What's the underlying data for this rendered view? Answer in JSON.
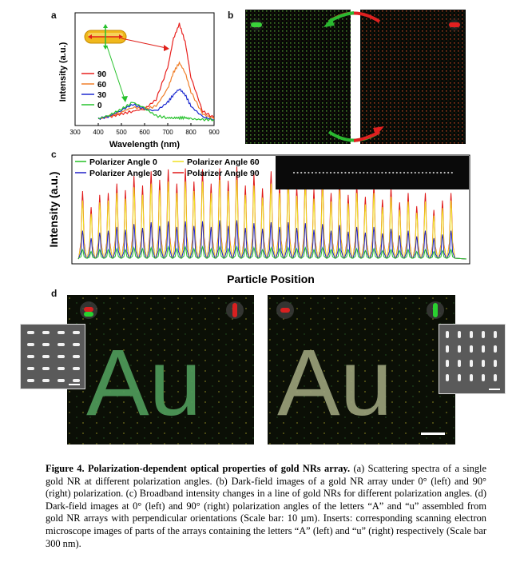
{
  "panels": {
    "a": "a",
    "b": "b",
    "c": "c",
    "d": "d"
  },
  "panel_a": {
    "xlabel": "Wavelength (nm)",
    "ylabel": "Intensity (a.u.)",
    "xticks": [
      "300",
      "400",
      "500",
      "600",
      "700",
      "800",
      "900"
    ],
    "legend": [
      "90",
      "60",
      "30",
      "0"
    ],
    "colors": {
      "s90": "#e8211e",
      "s60": "#f07f2a",
      "s30": "#1d2bd0",
      "s0": "#27c22d"
    }
  },
  "panel_c": {
    "xlabel": "Particle Position",
    "ylabel": "Intensity (a.u.)",
    "legend": [
      "Polarizer Angle 0",
      "Polarizer Angle 30",
      "Polarizer Angle 60",
      "Polarizer Angle 90"
    ],
    "colors": {
      "a0": "#26c026",
      "a30": "#2020c8",
      "a60": "#f0e020",
      "a90": "#e01818"
    }
  },
  "chart_data": [
    {
      "type": "line",
      "title": "",
      "xlabel": "Wavelength (nm)",
      "ylabel": "Intensity (a.u.)",
      "xlim": [
        300,
        900
      ],
      "x": [
        400,
        450,
        500,
        550,
        600,
        650,
        700,
        725,
        750,
        775,
        800,
        850,
        900
      ],
      "series": [
        {
          "name": "90",
          "values": [
            0.02,
            0.04,
            0.07,
            0.1,
            0.12,
            0.22,
            0.55,
            0.85,
            1.0,
            0.82,
            0.45,
            0.1,
            0.03
          ]
        },
        {
          "name": "60",
          "values": [
            0.02,
            0.05,
            0.09,
            0.14,
            0.12,
            0.15,
            0.33,
            0.5,
            0.6,
            0.5,
            0.3,
            0.07,
            0.02
          ]
        },
        {
          "name": "30",
          "values": [
            0.02,
            0.05,
            0.11,
            0.17,
            0.12,
            0.1,
            0.19,
            0.27,
            0.33,
            0.27,
            0.15,
            0.04,
            0.01
          ]
        },
        {
          "name": "0",
          "values": [
            0.02,
            0.06,
            0.12,
            0.19,
            0.13,
            0.05,
            0.03,
            0.03,
            0.03,
            0.03,
            0.02,
            0.01,
            0.01
          ]
        }
      ]
    },
    {
      "type": "line",
      "title": "",
      "xlabel": "Particle Position",
      "ylabel": "Intensity (a.u.)",
      "peaks": 44,
      "series": [
        {
          "name": "Polarizer Angle 90",
          "values": [
            0.72,
            0.55,
            0.68,
            0.7,
            0.8,
            0.73,
            0.88,
            0.78,
            0.93,
            0.84,
            0.95,
            0.8,
            0.96,
            0.82,
            0.95,
            0.8,
            0.96,
            0.83,
            0.98,
            0.78,
            0.9,
            0.75,
            0.93,
            0.8,
            0.92,
            0.77,
            0.9,
            0.74,
            0.88,
            0.7,
            0.84,
            0.68,
            0.8,
            0.66,
            0.8,
            0.63,
            0.76,
            0.6,
            0.7,
            0.56,
            0.7,
            0.52,
            0.62,
            0.7
          ]
        },
        {
          "name": "Polarizer Angle 60",
          "values": [
            0.62,
            0.48,
            0.6,
            0.62,
            0.7,
            0.64,
            0.76,
            0.68,
            0.8,
            0.73,
            0.82,
            0.7,
            0.82,
            0.72,
            0.82,
            0.7,
            0.84,
            0.72,
            0.84,
            0.68,
            0.78,
            0.65,
            0.8,
            0.7,
            0.8,
            0.67,
            0.78,
            0.64,
            0.76,
            0.61,
            0.73,
            0.59,
            0.7,
            0.58,
            0.7,
            0.55,
            0.66,
            0.52,
            0.61,
            0.49,
            0.61,
            0.46,
            0.54,
            0.62
          ]
        },
        {
          "name": "Polarizer Angle 30",
          "values": [
            0.3,
            0.22,
            0.28,
            0.3,
            0.34,
            0.31,
            0.37,
            0.33,
            0.39,
            0.35,
            0.4,
            0.34,
            0.4,
            0.35,
            0.4,
            0.34,
            0.41,
            0.35,
            0.41,
            0.33,
            0.38,
            0.32,
            0.39,
            0.34,
            0.39,
            0.33,
            0.38,
            0.31,
            0.37,
            0.3,
            0.36,
            0.29,
            0.34,
            0.28,
            0.34,
            0.27,
            0.32,
            0.25,
            0.3,
            0.24,
            0.3,
            0.22,
            0.26,
            0.3
          ]
        },
        {
          "name": "Polarizer Angle 0",
          "values": [
            0.1,
            0.08,
            0.1,
            0.1,
            0.11,
            0.1,
            0.12,
            0.11,
            0.12,
            0.11,
            0.13,
            0.11,
            0.13,
            0.11,
            0.13,
            0.11,
            0.13,
            0.11,
            0.13,
            0.11,
            0.12,
            0.1,
            0.12,
            0.11,
            0.12,
            0.11,
            0.12,
            0.1,
            0.12,
            0.1,
            0.11,
            0.1,
            0.11,
            0.09,
            0.11,
            0.09,
            0.1,
            0.09,
            0.1,
            0.08,
            0.1,
            0.08,
            0.09,
            0.1
          ]
        }
      ]
    }
  ],
  "panel_d": {
    "letters_left": "Au",
    "letters_right": "Au"
  },
  "caption": {
    "lead": "Figure 4. Polarization-dependent optical properties of gold NRs array.",
    "body": "(a) Scattering spectra of a single gold NR at different polarization angles. (b) Dark-field images of a gold NR array under 0° (left) and 90° (right) polarization. (c) Broadband intensity changes in a line of gold NRs for different polarization angles. (d) Dark-field images at 0° (left) and 90° (right) polarization angles of the letters “A” and “u” assembled from gold NR arrays with perpendicular orientations (Scale bar: 10 µm). Inserts: corresponding scanning electron microscope images of parts of the arrays containing the letters “A” (left) and “u” (right) respectively (Scale bar 300 nm)."
  }
}
